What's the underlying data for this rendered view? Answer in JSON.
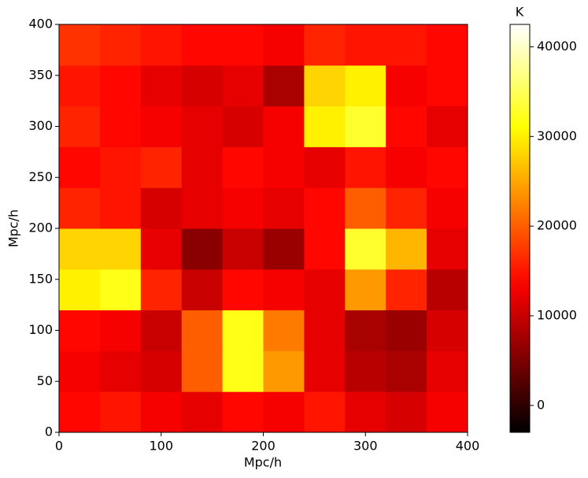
{
  "chart_data": {
    "type": "heatmap",
    "colormap": "hot",
    "xlabel": "Mpc/h",
    "ylabel": "Mpc/h",
    "colorbar_label": "K",
    "xlim": [
      0,
      400
    ],
    "ylim": [
      0,
      400
    ],
    "xticks": [
      0,
      100,
      200,
      300,
      400
    ],
    "yticks": [
      0,
      50,
      100,
      150,
      200,
      250,
      300,
      350,
      400
    ],
    "zlim": [
      -3000,
      42500
    ],
    "zticks": [
      0,
      10000,
      20000,
      30000,
      40000
    ],
    "x": [
      20,
      60,
      100,
      140,
      180,
      220,
      260,
      300,
      340,
      380
    ],
    "y": [
      20,
      60,
      100,
      140,
      180,
      220,
      260,
      300,
      340,
      380
    ],
    "z": [
      [
        14000,
        15000,
        13000,
        12000,
        14000,
        13000,
        15000,
        12000,
        11000,
        13000
      ],
      [
        13000,
        12000,
        11000,
        20000,
        32000,
        24000,
        12000,
        9000,
        8000,
        12000
      ],
      [
        14000,
        13000,
        10000,
        20000,
        32000,
        22000,
        12000,
        8000,
        7000,
        11000
      ],
      [
        30000,
        32000,
        16000,
        10000,
        14000,
        13000,
        12000,
        24000,
        16000,
        9000
      ],
      [
        28000,
        28000,
        12000,
        6000,
        10000,
        7000,
        14000,
        33000,
        26000,
        12000
      ],
      [
        16000,
        15000,
        11000,
        12000,
        13000,
        12000,
        14000,
        20000,
        16000,
        13000
      ],
      [
        14000,
        15000,
        16000,
        12000,
        14000,
        13000,
        12000,
        15000,
        13000,
        14000
      ],
      [
        16000,
        14000,
        13000,
        12000,
        11000,
        13000,
        30000,
        33000,
        14000,
        12000
      ],
      [
        15000,
        14000,
        12000,
        11000,
        12000,
        8000,
        28000,
        30000,
        13000,
        14000
      ],
      [
        17000,
        16000,
        15000,
        14000,
        14000,
        13000,
        16000,
        15000,
        15000,
        14000
      ]
    ]
  }
}
